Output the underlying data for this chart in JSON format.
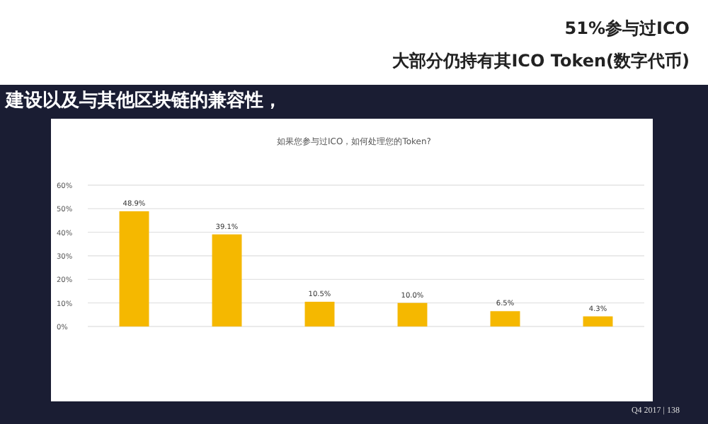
{
  "chart_data": {
    "type": "bar",
    "title": "51%参与过ICO",
    "subtitle": "大部分仍持有其ICO Token(数字代币)",
    "xlabel": "如果您参与过ICO，如何处理您的Token?",
    "categories": [
      null,
      null,
      null,
      null,
      null,
      null
    ],
    "values": [
      48.9,
      39.1,
      10.5,
      10.0,
      6.5,
      4.3
    ],
    "value_labels": [
      "48.9%",
      "39.1%",
      "10.5%",
      "10.0%",
      "6.5%",
      "4.3%"
    ],
    "color": "#f5b800",
    "ylim": [
      0,
      60
    ],
    "yticks": [
      {
        "value": 0,
        "label": "0%"
      },
      {
        "value": 10,
        "label": "10%"
      },
      {
        "value": 20,
        "label": "20%"
      },
      {
        "value": 30,
        "label": "30%"
      },
      {
        "value": 40,
        "label": "40%"
      },
      {
        "value": 50,
        "label": "50%"
      },
      {
        "value": 60,
        "label": "60%"
      }
    ],
    "grid": "y",
    "annotations": [
      "建设以及与其他区块链的兼容性，",
      "Q4 2017 | 138"
    ]
  }
}
